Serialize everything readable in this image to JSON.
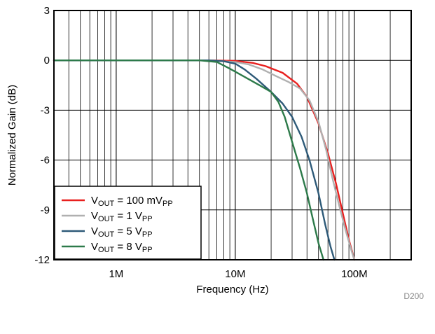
{
  "chart_data": {
    "type": "line",
    "xlabel": "Frequency (Hz)",
    "ylabel": "Normalized Gain (dB)",
    "xscale": "log",
    "xlim": [
      300000,
      300000000
    ],
    "ylim": [
      -12,
      3
    ],
    "x_ticks": [
      {
        "value": 1000000,
        "label": "1M"
      },
      {
        "value": 10000000,
        "label": "10M"
      },
      {
        "value": 100000000,
        "label": "100M"
      }
    ],
    "y_ticks": [
      {
        "value": 3,
        "label": "3"
      },
      {
        "value": 0,
        "label": "0"
      },
      {
        "value": -3,
        "label": "-3"
      },
      {
        "value": -6,
        "label": "-6"
      },
      {
        "value": -9,
        "label": "-9"
      },
      {
        "value": -12,
        "label": "-12"
      }
    ],
    "grid": true,
    "legend_position": "bottom-left",
    "note": "D200",
    "series": [
      {
        "name": "V_OUT = 100 mV_PP",
        "label_main": "V",
        "label_sub1": "OUT",
        "label_mid": " = 100 mV",
        "label_sub2": "PP",
        "color": "#e8201f",
        "x": [
          300000,
          1000000,
          3000000,
          6000000,
          10000000,
          14000000,
          18000000,
          25000000,
          33000000,
          40000000,
          50000000,
          60000000,
          70000000,
          80000000,
          90000000,
          100000000
        ],
        "y": [
          0,
          0,
          0,
          0,
          -0.03,
          -0.15,
          -0.35,
          -0.75,
          -1.4,
          -2.2,
          -3.8,
          -5.6,
          -7.4,
          -9.2,
          -10.8,
          -12
        ]
      },
      {
        "name": "V_OUT = 1 V_PP",
        "label_main": "V",
        "label_sub1": "OUT",
        "label_mid": " = 1 V",
        "label_sub2": "PP",
        "color": "#b0b0b0",
        "x": [
          300000,
          1000000,
          3000000,
          6000000,
          10000000,
          13000000,
          17000000,
          22000000,
          28000000,
          35000000,
          42000000,
          50000000,
          58000000,
          65000000,
          75000000,
          85000000,
          95000000,
          100000000
        ],
        "y": [
          0,
          0,
          0,
          0,
          -0.1,
          -0.25,
          -0.55,
          -0.95,
          -1.3,
          -1.7,
          -2.4,
          -3.7,
          -5.4,
          -7.0,
          -8.8,
          -10.3,
          -11.5,
          -12
        ]
      },
      {
        "name": "V_OUT = 5 V_PP",
        "label_main": "V",
        "label_sub1": "OUT",
        "label_mid": " = 5 V",
        "label_sub2": "PP",
        "color": "#2e5a78",
        "x": [
          300000,
          1000000,
          3000000,
          6000000,
          8000000,
          10000000,
          12000000,
          15000000,
          20000000,
          25000000,
          30000000,
          36000000,
          42000000,
          50000000,
          57000000,
          63000000,
          68000000
        ],
        "y": [
          0,
          0,
          0,
          0,
          -0.05,
          -0.2,
          -0.55,
          -1.1,
          -1.9,
          -2.6,
          -3.4,
          -4.6,
          -6.0,
          -8.0,
          -9.9,
          -11.2,
          -12
        ]
      },
      {
        "name": "V_OUT = 8 V_PP",
        "label_main": "V",
        "label_sub1": "OUT",
        "label_mid": " = 8 V",
        "label_sub2": "PP",
        "color": "#2d7a4a",
        "x": [
          300000,
          1000000,
          3000000,
          5000000,
          7000000,
          9000000,
          12000000,
          16000000,
          20000000,
          23000000,
          26000000,
          30000000,
          35000000,
          40000000,
          45000000,
          50000000,
          55000000
        ],
        "y": [
          0,
          0,
          0,
          0,
          -0.1,
          -0.5,
          -1.0,
          -1.5,
          -1.9,
          -2.5,
          -3.4,
          -4.9,
          -6.5,
          -8.0,
          -9.6,
          -11.0,
          -12
        ]
      }
    ]
  }
}
